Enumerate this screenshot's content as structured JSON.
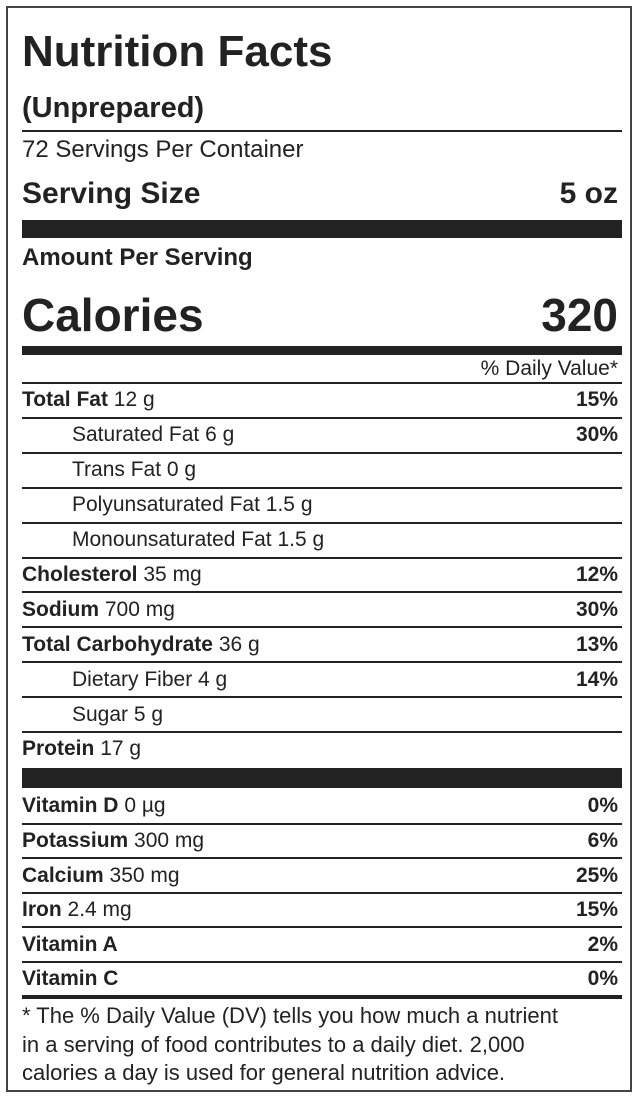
{
  "title": "Nutrition Facts",
  "subtitle": "(Unprepared)",
  "servings_per_container": "72 Servings Per Container",
  "serving_size": {
    "label": "Serving Size",
    "value": "5 oz"
  },
  "amount_per_serving": "Amount Per Serving",
  "calories": {
    "label": "Calories",
    "value": "320"
  },
  "daily_value_header": "% Daily Value*",
  "nutrients": [
    {
      "name": "Total Fat",
      "amount": "12 g",
      "dv": "15%",
      "sub": [
        {
          "name": "Saturated Fat",
          "amount": "6 g",
          "dv": "30%"
        },
        {
          "name": "Trans Fat",
          "amount": "0 g"
        },
        {
          "name": "Polyunsaturated Fat",
          "amount": "1.5 g"
        },
        {
          "name": "Monounsaturated Fat",
          "amount": "1.5 g"
        }
      ]
    },
    {
      "name": "Cholesterol",
      "amount": "35 mg",
      "dv": "12%"
    },
    {
      "name": "Sodium",
      "amount": "700 mg",
      "dv": "30%"
    },
    {
      "name": "Total Carbohydrate",
      "amount": "36 g",
      "dv": "13%",
      "sub": [
        {
          "name": "Dietary Fiber",
          "amount": "4 g",
          "dv": "14%"
        },
        {
          "name": "Sugar",
          "amount": "5 g"
        }
      ]
    },
    {
      "name": "Protein",
      "amount": "17 g"
    }
  ],
  "vitamins": [
    {
      "name": "Vitamin D",
      "amount": "0 µg",
      "dv": "0%"
    },
    {
      "name": "Potassium",
      "amount": "300 mg",
      "dv": "6%"
    },
    {
      "name": "Calcium",
      "amount": "350 mg",
      "dv": "25%"
    },
    {
      "name": "Iron",
      "amount": "2.4 mg",
      "dv": "15%"
    },
    {
      "name": "Vitamin A",
      "dv": "2%"
    },
    {
      "name": "Vitamin C",
      "dv": "0%"
    }
  ],
  "footnote": [
    "* The % Daily Value (DV) tells you how much a nutrient",
    "in a serving of food contributes to a daily diet. 2,000",
    "calories a day is used for general nutrition advice."
  ]
}
